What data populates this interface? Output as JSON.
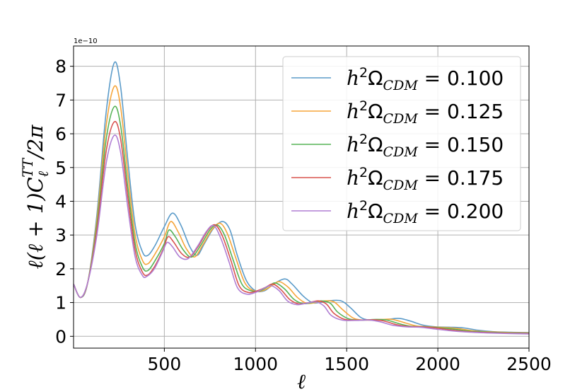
{
  "chart_data": {
    "type": "line",
    "title": "",
    "xlabel": "ℓ",
    "ylabel": "ℓ(ℓ + 1)C_ℓ^TT/2π",
    "y_exponent_label": "1e−10",
    "xlim": [
      2,
      2500
    ],
    "ylim": [
      -0.35,
      8.6
    ],
    "x_ticks": [
      500,
      1000,
      1500,
      2000,
      2500
    ],
    "x_tick_labels": [
      "500",
      "1000",
      "1500",
      "2000",
      "2500"
    ],
    "y_ticks": [
      0,
      1,
      2,
      3,
      4,
      5,
      6,
      7,
      8
    ],
    "y_tick_labels": [
      "0",
      "1",
      "2",
      "3",
      "4",
      "5",
      "6",
      "7",
      "8"
    ],
    "grid": true,
    "legend_position": "top-right",
    "series": [
      {
        "name": "h²Ω_CDM = 0.100",
        "color": "#5b9bc9",
        "points": [
          [
            2,
            1.55
          ],
          [
            40,
            1.15
          ],
          [
            80,
            1.6
          ],
          [
            130,
            3.6
          ],
          [
            180,
            6.6
          ],
          [
            225,
            8.1
          ],
          [
            260,
            7.4
          ],
          [
            300,
            5.2
          ],
          [
            340,
            3.3
          ],
          [
            380,
            2.5
          ],
          [
            410,
            2.4
          ],
          [
            450,
            2.7
          ],
          [
            500,
            3.25
          ],
          [
            545,
            3.65
          ],
          [
            590,
            3.3
          ],
          [
            640,
            2.65
          ],
          [
            680,
            2.4
          ],
          [
            720,
            2.75
          ],
          [
            770,
            3.2
          ],
          [
            820,
            3.4
          ],
          [
            860,
            3.15
          ],
          [
            900,
            2.4
          ],
          [
            950,
            1.65
          ],
          [
            1000,
            1.35
          ],
          [
            1050,
            1.35
          ],
          [
            1100,
            1.55
          ],
          [
            1160,
            1.7
          ],
          [
            1200,
            1.55
          ],
          [
            1260,
            1.2
          ],
          [
            1310,
            1.0
          ],
          [
            1350,
            1.0
          ],
          [
            1400,
            1.05
          ],
          [
            1470,
            1.05
          ],
          [
            1520,
            0.85
          ],
          [
            1580,
            0.55
          ],
          [
            1640,
            0.48
          ],
          [
            1720,
            0.5
          ],
          [
            1790,
            0.53
          ],
          [
            1850,
            0.45
          ],
          [
            1920,
            0.33
          ],
          [
            1990,
            0.28
          ],
          [
            2060,
            0.27
          ],
          [
            2140,
            0.25
          ],
          [
            2220,
            0.18
          ],
          [
            2300,
            0.14
          ],
          [
            2400,
            0.12
          ],
          [
            2500,
            0.11
          ]
        ]
      },
      {
        "name": "h²Ω_CDM = 0.125",
        "color": "#f5a53a",
        "points": [
          [
            2,
            1.55
          ],
          [
            40,
            1.15
          ],
          [
            80,
            1.6
          ],
          [
            130,
            3.45
          ],
          [
            180,
            6.2
          ],
          [
            225,
            7.4
          ],
          [
            260,
            6.8
          ],
          [
            300,
            4.8
          ],
          [
            340,
            3.0
          ],
          [
            380,
            2.25
          ],
          [
            410,
            2.15
          ],
          [
            450,
            2.45
          ],
          [
            500,
            2.95
          ],
          [
            535,
            3.4
          ],
          [
            575,
            3.1
          ],
          [
            620,
            2.6
          ],
          [
            665,
            2.35
          ],
          [
            710,
            2.7
          ],
          [
            760,
            3.15
          ],
          [
            805,
            3.35
          ],
          [
            845,
            3.05
          ],
          [
            890,
            2.35
          ],
          [
            940,
            1.6
          ],
          [
            990,
            1.35
          ],
          [
            1040,
            1.35
          ],
          [
            1090,
            1.5
          ],
          [
            1130,
            1.62
          ],
          [
            1180,
            1.45
          ],
          [
            1230,
            1.15
          ],
          [
            1280,
            0.98
          ],
          [
            1330,
            1.0
          ],
          [
            1380,
            1.05
          ],
          [
            1430,
            1.02
          ],
          [
            1480,
            0.78
          ],
          [
            1540,
            0.53
          ],
          [
            1610,
            0.48
          ],
          [
            1690,
            0.5
          ],
          [
            1750,
            0.5
          ],
          [
            1820,
            0.4
          ],
          [
            1880,
            0.31
          ],
          [
            1960,
            0.28
          ],
          [
            2040,
            0.26
          ],
          [
            2110,
            0.23
          ],
          [
            2200,
            0.16
          ],
          [
            2300,
            0.13
          ],
          [
            2400,
            0.11
          ],
          [
            2500,
            0.1
          ]
        ]
      },
      {
        "name": "h²Ω_CDM = 0.150",
        "color": "#56b356",
        "points": [
          [
            2,
            1.55
          ],
          [
            40,
            1.15
          ],
          [
            80,
            1.6
          ],
          [
            130,
            3.3
          ],
          [
            180,
            5.8
          ],
          [
            225,
            6.8
          ],
          [
            260,
            6.25
          ],
          [
            300,
            4.4
          ],
          [
            340,
            2.75
          ],
          [
            380,
            2.05
          ],
          [
            410,
            1.95
          ],
          [
            450,
            2.25
          ],
          [
            500,
            2.75
          ],
          [
            525,
            3.15
          ],
          [
            560,
            2.95
          ],
          [
            605,
            2.55
          ],
          [
            650,
            2.35
          ],
          [
            700,
            2.7
          ],
          [
            750,
            3.15
          ],
          [
            790,
            3.3
          ],
          [
            830,
            3.0
          ],
          [
            875,
            2.3
          ],
          [
            925,
            1.55
          ],
          [
            975,
            1.35
          ],
          [
            1025,
            1.35
          ],
          [
            1070,
            1.48
          ],
          [
            1110,
            1.58
          ],
          [
            1160,
            1.4
          ],
          [
            1210,
            1.1
          ],
          [
            1260,
            0.97
          ],
          [
            1310,
            1.0
          ],
          [
            1360,
            1.05
          ],
          [
            1410,
            0.98
          ],
          [
            1450,
            0.72
          ],
          [
            1510,
            0.52
          ],
          [
            1580,
            0.48
          ],
          [
            1660,
            0.5
          ],
          [
            1720,
            0.48
          ],
          [
            1790,
            0.37
          ],
          [
            1850,
            0.3
          ],
          [
            1930,
            0.28
          ],
          [
            2020,
            0.25
          ],
          [
            2090,
            0.21
          ],
          [
            2180,
            0.15
          ],
          [
            2300,
            0.12
          ],
          [
            2400,
            0.1
          ],
          [
            2500,
            0.09
          ]
        ]
      },
      {
        "name": "h²Ω_CDM = 0.175",
        "color": "#d9534f",
        "points": [
          [
            2,
            1.55
          ],
          [
            40,
            1.15
          ],
          [
            80,
            1.6
          ],
          [
            130,
            3.15
          ],
          [
            180,
            5.45
          ],
          [
            225,
            6.35
          ],
          [
            260,
            5.85
          ],
          [
            300,
            4.1
          ],
          [
            340,
            2.55
          ],
          [
            380,
            1.9
          ],
          [
            410,
            1.82
          ],
          [
            450,
            2.1
          ],
          [
            495,
            2.6
          ],
          [
            520,
            2.95
          ],
          [
            550,
            2.8
          ],
          [
            595,
            2.45
          ],
          [
            640,
            2.35
          ],
          [
            690,
            2.7
          ],
          [
            740,
            3.15
          ],
          [
            780,
            3.3
          ],
          [
            820,
            2.95
          ],
          [
            865,
            2.25
          ],
          [
            910,
            1.5
          ],
          [
            960,
            1.3
          ],
          [
            1010,
            1.35
          ],
          [
            1055,
            1.45
          ],
          [
            1095,
            1.55
          ],
          [
            1140,
            1.38
          ],
          [
            1190,
            1.08
          ],
          [
            1240,
            0.96
          ],
          [
            1295,
            1.0
          ],
          [
            1345,
            1.05
          ],
          [
            1390,
            0.95
          ],
          [
            1430,
            0.68
          ],
          [
            1490,
            0.5
          ],
          [
            1560,
            0.48
          ],
          [
            1640,
            0.49
          ],
          [
            1700,
            0.46
          ],
          [
            1770,
            0.35
          ],
          [
            1840,
            0.29
          ],
          [
            1910,
            0.28
          ],
          [
            2000,
            0.24
          ],
          [
            2070,
            0.19
          ],
          [
            2160,
            0.14
          ],
          [
            2280,
            0.11
          ],
          [
            2400,
            0.09
          ],
          [
            2500,
            0.08
          ]
        ]
      },
      {
        "name": "h²Ω_CDM = 0.200",
        "color": "#b07ed3",
        "points": [
          [
            2,
            1.55
          ],
          [
            40,
            1.15
          ],
          [
            80,
            1.6
          ],
          [
            130,
            3.0
          ],
          [
            180,
            5.1
          ],
          [
            225,
            5.95
          ],
          [
            260,
            5.45
          ],
          [
            300,
            3.8
          ],
          [
            340,
            2.35
          ],
          [
            380,
            1.8
          ],
          [
            405,
            1.78
          ],
          [
            445,
            2.0
          ],
          [
            490,
            2.5
          ],
          [
            515,
            2.78
          ],
          [
            545,
            2.65
          ],
          [
            585,
            2.35
          ],
          [
            630,
            2.3
          ],
          [
            680,
            2.65
          ],
          [
            730,
            3.1
          ],
          [
            770,
            3.28
          ],
          [
            810,
            2.9
          ],
          [
            855,
            2.2
          ],
          [
            900,
            1.45
          ],
          [
            950,
            1.25
          ],
          [
            1000,
            1.3
          ],
          [
            1045,
            1.42
          ],
          [
            1085,
            1.5
          ],
          [
            1130,
            1.35
          ],
          [
            1175,
            1.05
          ],
          [
            1225,
            0.94
          ],
          [
            1280,
            0.98
          ],
          [
            1330,
            1.02
          ],
          [
            1375,
            0.9
          ],
          [
            1415,
            0.62
          ],
          [
            1475,
            0.48
          ],
          [
            1545,
            0.47
          ],
          [
            1625,
            0.48
          ],
          [
            1685,
            0.43
          ],
          [
            1750,
            0.33
          ],
          [
            1830,
            0.28
          ],
          [
            1900,
            0.27
          ],
          [
            1980,
            0.22
          ],
          [
            2060,
            0.17
          ],
          [
            2150,
            0.13
          ],
          [
            2270,
            0.1
          ],
          [
            2400,
            0.08
          ],
          [
            2500,
            0.07
          ]
        ]
      }
    ]
  }
}
